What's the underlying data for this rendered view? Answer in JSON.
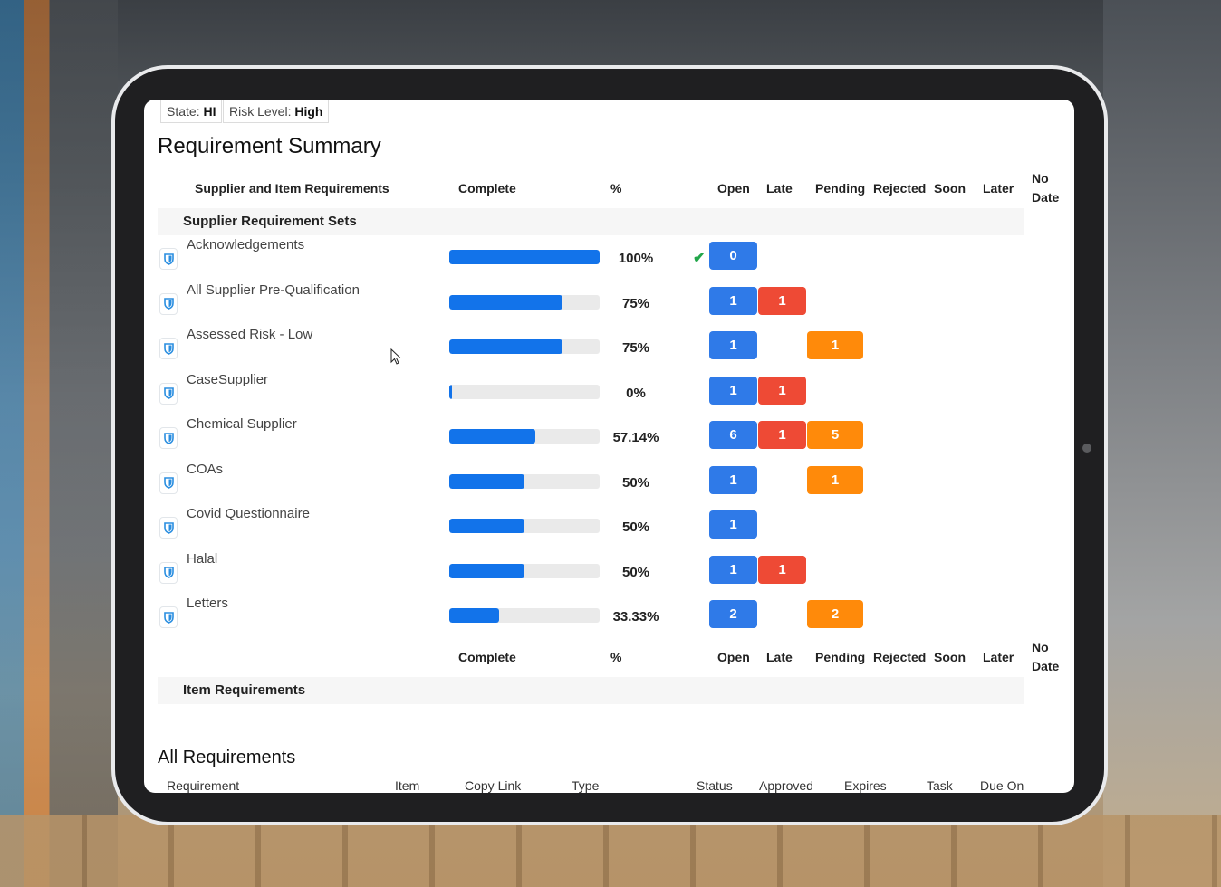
{
  "filters": {
    "state_label": "State:",
    "state_value": "HI",
    "risk_label": "Risk Level:",
    "risk_value": "High"
  },
  "summary": {
    "title": "Requirement Summary",
    "headers": {
      "requirements": "Supplier and Item Requirements",
      "complete": "Complete",
      "percent": "%",
      "open": "Open",
      "late": "Late",
      "pending": "Pending",
      "rejected": "Rejected",
      "soon": "Soon",
      "later": "Later",
      "nodate_1": "No",
      "nodate_2": "Date"
    },
    "supplier_section": "Supplier Requirement Sets",
    "rows": [
      {
        "name": "Acknowledgements",
        "complete": 100,
        "percent": "100%",
        "check": "✔",
        "open": "0",
        "late": "",
        "pending": ""
      },
      {
        "name": "All Supplier Pre-Qualification",
        "complete": 75,
        "percent": "75%",
        "open": "1",
        "late": "1",
        "pending": ""
      },
      {
        "name": "Assessed Risk - Low",
        "complete": 75,
        "percent": "75%",
        "open": "1",
        "late": "",
        "pending": "1"
      },
      {
        "name": "CaseSupplier",
        "complete": 0,
        "percent": "0%",
        "open": "1",
        "late": "1",
        "pending": ""
      },
      {
        "name": "Chemical Supplier",
        "complete": 57.14,
        "percent": "57.14%",
        "open": "6",
        "late": "1",
        "pending": "5"
      },
      {
        "name": "COAs",
        "complete": 50,
        "percent": "50%",
        "open": "1",
        "late": "",
        "pending": "1"
      },
      {
        "name": "Covid Questionnaire",
        "complete": 50,
        "percent": "50%",
        "open": "1",
        "late": "",
        "pending": ""
      },
      {
        "name": "Halal",
        "complete": 50,
        "percent": "50%",
        "open": "1",
        "late": "1",
        "pending": ""
      },
      {
        "name": "Letters",
        "complete": 33.33,
        "percent": "33.33%",
        "open": "2",
        "late": "",
        "pending": "2"
      }
    ],
    "item_section": "Item Requirements"
  },
  "all_requirements": {
    "title": "All Requirements",
    "columns": [
      "Requirement",
      "Item",
      "Copy Link",
      "Type",
      "Status",
      "Approved",
      "Expires",
      "Task",
      "Due On"
    ]
  },
  "colors": {
    "open": "#2f7ae8",
    "late": "#ee4a35",
    "pending": "#ff8a0a",
    "progress": "#1273ea"
  }
}
